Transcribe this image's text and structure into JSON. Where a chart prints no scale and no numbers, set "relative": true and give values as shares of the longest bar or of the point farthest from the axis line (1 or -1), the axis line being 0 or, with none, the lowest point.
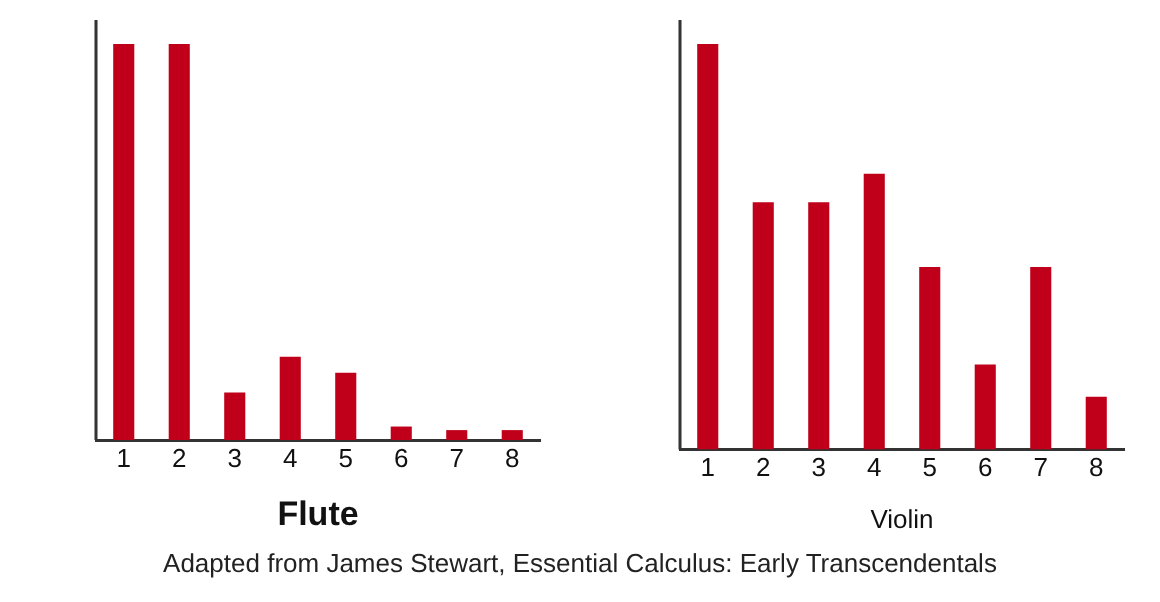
{
  "chart_data": [
    {
      "type": "bar",
      "title": "Flute",
      "categories": [
        "1",
        "2",
        "3",
        "4",
        "5",
        "6",
        "7",
        "8"
      ],
      "relative": true,
      "color": "#c0001a",
      "grid": false,
      "legend": false,
      "values": [
        1,
        1,
        0.12,
        0.21,
        0.17,
        0.034,
        0.025,
        0.025
      ]
    },
    {
      "type": "bar",
      "title": "Violin",
      "categories": [
        "1",
        "2",
        "3",
        "4",
        "5",
        "6",
        "7",
        "8"
      ],
      "relative": true,
      "color": "#c0001a",
      "grid": false,
      "legend": false,
      "values": [
        1,
        0.61,
        0.61,
        0.68,
        0.45,
        0.21,
        0.45,
        0.13
      ],
      "annotations": [
        "Adapted from James Stewart, Essential Calculus: Early Transcendentals"
      ]
    }
  ]
}
